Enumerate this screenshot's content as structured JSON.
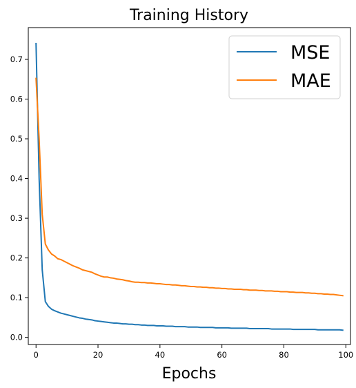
{
  "chart_data": {
    "type": "line",
    "title": "Training History",
    "xlabel": "Epochs",
    "ylabel": "",
    "xlim": [
      -2.5,
      101.5
    ],
    "ylim": [
      -0.018,
      0.78
    ],
    "xticks": [
      0,
      20,
      40,
      60,
      80,
      100
    ],
    "yticks": [
      0.0,
      0.1,
      0.2,
      0.3,
      0.4,
      0.5,
      0.6,
      0.7
    ],
    "grid": false,
    "legend_position": "top-right",
    "series": [
      {
        "name": "MSE",
        "color": "#1f77b4",
        "x_start": 0,
        "values": [
          0.74,
          0.4,
          0.17,
          0.09,
          0.078,
          0.071,
          0.067,
          0.064,
          0.061,
          0.059,
          0.057,
          0.055,
          0.053,
          0.051,
          0.049,
          0.048,
          0.046,
          0.045,
          0.044,
          0.042,
          0.041,
          0.04,
          0.039,
          0.038,
          0.037,
          0.036,
          0.036,
          0.035,
          0.034,
          0.034,
          0.033,
          0.033,
          0.032,
          0.032,
          0.031,
          0.031,
          0.03,
          0.03,
          0.03,
          0.029,
          0.029,
          0.029,
          0.028,
          0.028,
          0.028,
          0.027,
          0.027,
          0.027,
          0.027,
          0.026,
          0.026,
          0.026,
          0.026,
          0.025,
          0.025,
          0.025,
          0.025,
          0.025,
          0.024,
          0.024,
          0.024,
          0.024,
          0.024,
          0.023,
          0.023,
          0.023,
          0.023,
          0.023,
          0.023,
          0.022,
          0.022,
          0.022,
          0.022,
          0.022,
          0.022,
          0.022,
          0.021,
          0.021,
          0.021,
          0.021,
          0.021,
          0.021,
          0.021,
          0.02,
          0.02,
          0.02,
          0.02,
          0.02,
          0.02,
          0.02,
          0.02,
          0.019,
          0.019,
          0.019,
          0.019,
          0.019,
          0.019,
          0.019,
          0.019,
          0.018
        ]
      },
      {
        "name": "MAE",
        "color": "#ff7f0e",
        "x_start": 0,
        "values": [
          0.652,
          0.5,
          0.31,
          0.235,
          0.22,
          0.21,
          0.205,
          0.198,
          0.196,
          0.192,
          0.188,
          0.184,
          0.18,
          0.177,
          0.174,
          0.17,
          0.168,
          0.166,
          0.164,
          0.16,
          0.157,
          0.154,
          0.152,
          0.152,
          0.15,
          0.149,
          0.147,
          0.146,
          0.145,
          0.143,
          0.142,
          0.14,
          0.139,
          0.139,
          0.138,
          0.138,
          0.137,
          0.137,
          0.136,
          0.135,
          0.135,
          0.134,
          0.133,
          0.133,
          0.132,
          0.132,
          0.131,
          0.13,
          0.13,
          0.129,
          0.128,
          0.128,
          0.127,
          0.127,
          0.126,
          0.126,
          0.125,
          0.125,
          0.124,
          0.124,
          0.123,
          0.123,
          0.122,
          0.122,
          0.121,
          0.121,
          0.121,
          0.12,
          0.12,
          0.119,
          0.119,
          0.119,
          0.118,
          0.118,
          0.117,
          0.117,
          0.117,
          0.116,
          0.116,
          0.115,
          0.115,
          0.115,
          0.114,
          0.114,
          0.113,
          0.113,
          0.113,
          0.112,
          0.112,
          0.111,
          0.111,
          0.11,
          0.11,
          0.109,
          0.109,
          0.108,
          0.108,
          0.107,
          0.106,
          0.105
        ]
      }
    ]
  }
}
